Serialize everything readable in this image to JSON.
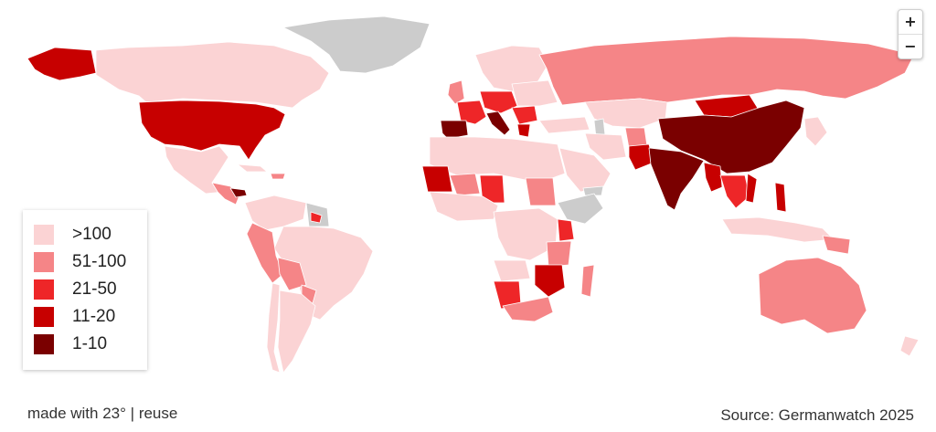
{
  "zoom": {
    "in_label": "+",
    "out_label": "−"
  },
  "legend": {
    "items": [
      {
        "label": ">100",
        "color": "#fbd3d4"
      },
      {
        "label": "51-100",
        "color": "#f58587"
      },
      {
        "label": "21-50",
        "color": "#ee2628"
      },
      {
        "label": "11-20",
        "color": "#c70000"
      },
      {
        "label": "1-10",
        "color": "#7a0000"
      }
    ]
  },
  "colors": {
    "no_data": "#cccccc",
    "ocean": "#ffffff",
    "border": "#ffffff"
  },
  "footer": {
    "made_with": "made with 23°",
    "separator": "|",
    "reuse": "reuse",
    "source": "Source: Germanwatch 2025"
  }
}
